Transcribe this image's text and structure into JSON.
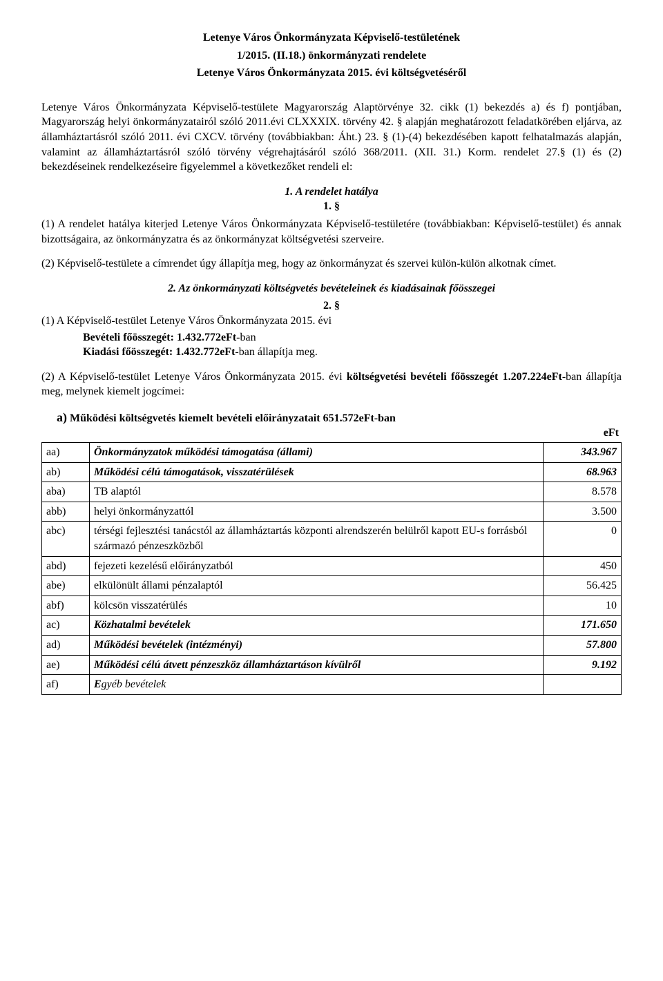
{
  "header": {
    "line1": "Letenye Város Önkormányzata Képviselő-testületének",
    "line2": "1/2015. (II.18.) önkormányzati rendelete",
    "line3": "Letenye Város Önkormányzata 2015. évi költségvetéséről"
  },
  "preamble": "Letenye Város Önkormányzata Képviselő-testülete Magyarország Alaptörvénye 32. cikk (1) bekezdés a) és f) pontjában, Magyarország helyi önkormányzatairól szóló 2011.évi CLXXXIX. törvény 42. § alapján meghatározott feladatkörében eljárva, az államháztartásról szóló 2011. évi CXCV. törvény (továbbiakban: Áht.) 23. § (1)-(4) bekezdésében kapott felhatalmazás alapján, valamint az államháztartásról szóló törvény végrehajtásáról szóló 368/2011. (XII. 31.) Korm. rendelet 27.§ (1) és (2) bekezdéseinek rendelkezéseire figyelemmel a következőket rendeli el:",
  "s1": {
    "heading": "1. A rendelet hatálya",
    "num": "1. §",
    "p1": "(1) A rendelet hatálya kiterjed Letenye Város Önkormányzata Képviselő-testületére (továbbiakban: Képviselő-testület) és annak bizottságaira, az önkormányzatra és az önkormányzat költségvetési szerveire.",
    "p2": "(2) Képviselő-testülete a címrendet úgy állapítja meg, hogy az önkormányzat és szervei külön-külön alkotnak címet."
  },
  "s2": {
    "heading": "2. Az önkormányzati költségvetés bevételeinek és kiadásainak főösszegei",
    "num": "2. §",
    "p1_lead": "(1)  A Képviselő-testület Letenye Város Önkormányzata 2015. évi",
    "rev_label": "Bevételi főösszegét: 1.432.772eFt",
    "rev_suffix": "-ban",
    "exp_label": "Kiadási főösszegét: 1.432.772eFt",
    "exp_suffix": "-ban állapítja meg.",
    "p2_a": "(2) A Képviselő-testület Letenye Város Önkormányzata 2015. évi ",
    "p2_b": "költségvetési bevételi főösszegét 1.207.224eFt",
    "p2_c": "-ban állapítja meg, melynek kiemelt jogcímei:",
    "a_prefix": "a)",
    "a_text": "Működési költségvetés kiemelt bevételi előirányzatait 651.572eFt-ban",
    "unit": "eFt"
  },
  "table": {
    "rows": [
      {
        "style": "row-bi",
        "code": "aa)",
        "label": "Önkormányzatok működési támogatása (állami)",
        "value": "343.967"
      },
      {
        "style": "row-bi",
        "code": "ab)",
        "label": "Működési célú támogatások, visszatérülések",
        "value": "68.963"
      },
      {
        "style": "",
        "code": "aba)",
        "label": "TB alaptól",
        "value": "8.578"
      },
      {
        "style": "",
        "code": "abb)",
        "label": "helyi önkormányzattól",
        "value": "3.500"
      },
      {
        "style": "",
        "code": "abc)",
        "label": "térségi fejlesztési tanácstól az államháztartás központi alrendszerén belülről kapott EU-s forrásból származó pénzeszközből",
        "value": "0"
      },
      {
        "style": "",
        "code": "abd)",
        "label": "fejezeti kezelésű előirányzatból",
        "value": "450"
      },
      {
        "style": "",
        "code": "abe)",
        "label": "elkülönült állami pénzalaptól",
        "value": "56.425"
      },
      {
        "style": "",
        "code": "abf)",
        "label": "kölcsön visszatérülés",
        "value": "10"
      },
      {
        "style": "row-bi",
        "code": "ac)",
        "label": "Közhatalmi bevételek",
        "value": "171.650"
      },
      {
        "style": "row-bi",
        "code": "ad)",
        "label": "Működési bevételek (intézményi)",
        "value": "57.800"
      },
      {
        "style": "row-bi",
        "code": "ae)",
        "label": "Működési célú átvett pénzeszköz államháztartáson kívülről",
        "value": "9.192"
      },
      {
        "style": "row-i",
        "code": "af)",
        "label_prefix": "E",
        "label_rest": "gyéb bevételek",
        "value": ""
      }
    ]
  }
}
